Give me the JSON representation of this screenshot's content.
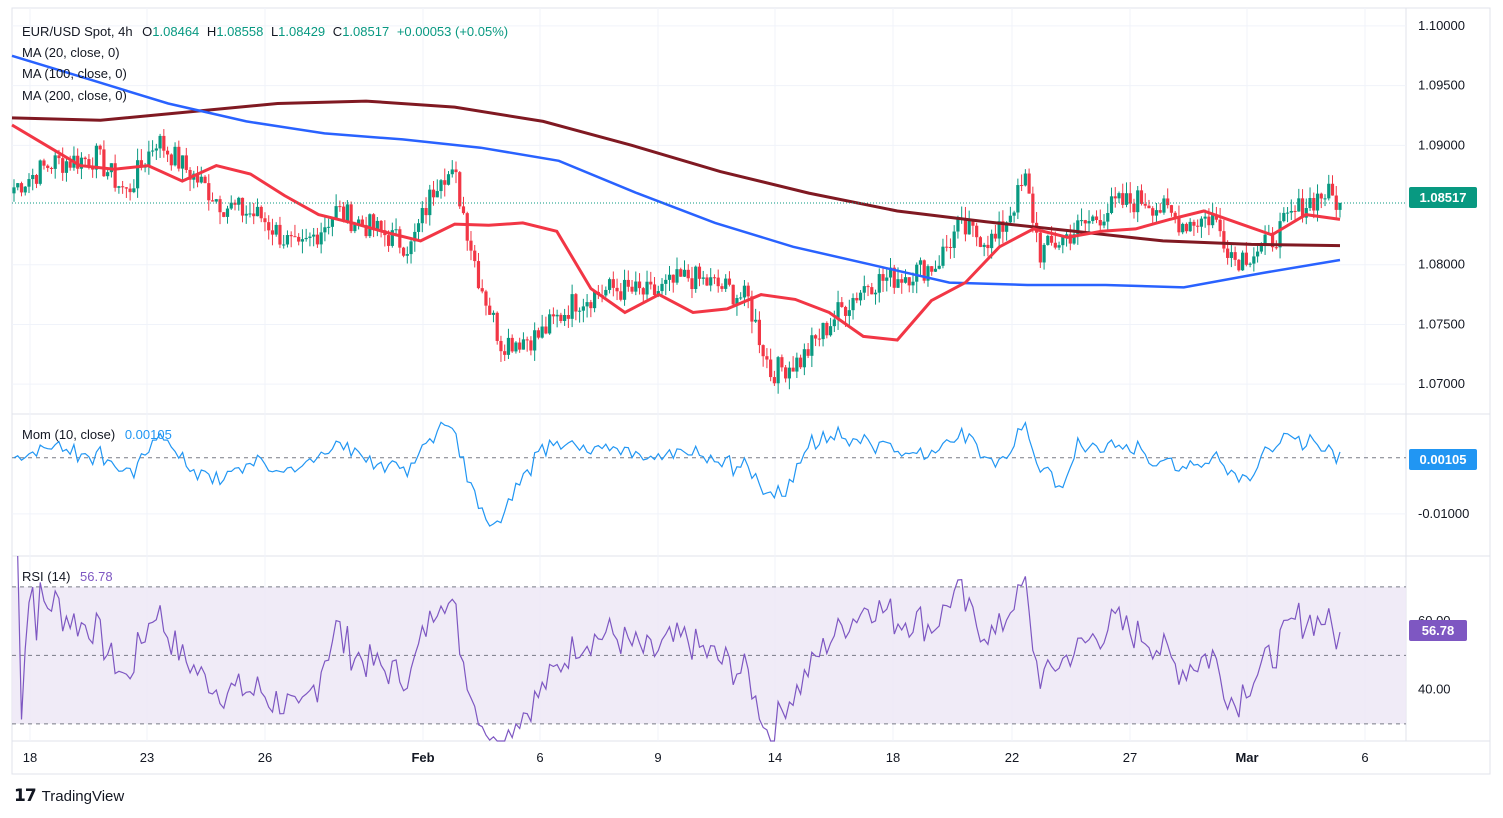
{
  "header": {
    "symbol": "EUR/USD Spot, 4h",
    "ohlc_prefix": "O",
    "open": "1.08464",
    "high_prefix": "H",
    "high": "1.08558",
    "low_prefix": "L",
    "low": "1.08429",
    "close_prefix": "C",
    "close": "1.08517",
    "change": "+0.00053 (+0.05%)"
  },
  "indicators": {
    "ma20": "MA (20, close, 0)",
    "ma100": "MA (100, close, 0)",
    "ma200": "MA (200, close, 0)",
    "mom_label": "Mom (10, close)",
    "mom_value": "0.00105",
    "rsi_label": "RSI (14)",
    "rsi_value": "56.78"
  },
  "price_tag": "1.08517",
  "mom_tag": "0.00105",
  "rsi_tag": "56.78",
  "brand": "TradingView",
  "colors": {
    "up": "#089981",
    "down": "#f23645",
    "ma20": "#f23645",
    "ma100": "#2962ff",
    "ma200": "#801922",
    "mom": "#2196f3",
    "rsi": "#7e57c2",
    "rsi_band": "#ede7f6"
  },
  "chart_data": [
    {
      "type": "candlestick",
      "title": "EUR/USD Spot, 4h",
      "x_ticks": [
        "18",
        "23",
        "26",
        "Feb",
        "6",
        "9",
        "14",
        "18",
        "22",
        "27",
        "Mar",
        "6"
      ],
      "y_ticks": [
        "1.10000",
        "1.09500",
        "1.09000",
        "1.08000",
        "1.07500",
        "1.07000"
      ],
      "ylim": [
        1.0675,
        1.1015
      ],
      "last_price": 1.08517,
      "ma20": [
        1.0917,
        1.09,
        1.0883,
        1.088,
        1.0883,
        1.087,
        1.0883,
        1.0876,
        1.0858,
        1.0842,
        1.0835,
        1.0827,
        1.082,
        1.0834,
        1.0833,
        1.0835,
        1.0828,
        1.078,
        1.076,
        1.0775,
        1.076,
        1.0763,
        1.0775,
        1.0771,
        1.076,
        1.074,
        1.0737,
        1.077,
        1.0785,
        1.0815,
        1.083,
        1.0823,
        1.0828,
        1.083,
        1.0838,
        1.0845,
        1.0835,
        1.0825,
        1.0842,
        1.0838
      ],
      "ma100": [
        1.0975,
        1.0955,
        1.0935,
        1.092,
        1.091,
        1.0905,
        1.0898,
        1.0887,
        1.086,
        1.0835,
        1.0815,
        1.08,
        1.0785,
        1.0783,
        1.0783,
        1.0781,
        1.0793,
        1.0804
      ],
      "ma200": [
        1.0923,
        1.0921,
        1.0928,
        1.0935,
        1.0937,
        1.0932,
        1.092,
        1.09,
        1.0878,
        1.086,
        1.0845,
        1.0836,
        1.0828,
        1.082,
        1.0817,
        1.0816
      ]
    },
    {
      "type": "line",
      "title": "Mom (10, close)",
      "y_ticks": [
        "0.00105",
        "-0.01000"
      ],
      "zero_line": 0,
      "ylim": [
        -0.0175,
        0.0078
      ],
      "last_value": 0.00105
    },
    {
      "type": "line",
      "title": "RSI (14)",
      "y_ticks": [
        "60.00",
        "40.00"
      ],
      "band": [
        30,
        70
      ],
      "mid": 50,
      "ylim": [
        25,
        79
      ],
      "last_value": 56.78
    }
  ]
}
